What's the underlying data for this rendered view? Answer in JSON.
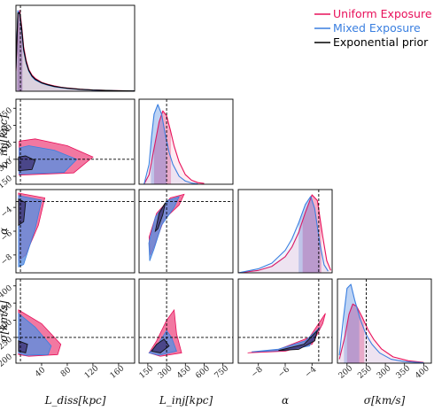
{
  "legend": {
    "entries": [
      {
        "label": "Uniform Exposure",
        "color": "#e8105a"
      },
      {
        "label": "Mixed Exposure",
        "color": "#3a7fe0"
      },
      {
        "label": "Exponential prior",
        "color": "#000000"
      }
    ],
    "placement": "top-right"
  },
  "chart_data": {
    "type": "corner",
    "parameters": [
      {
        "name": "L_diss",
        "label": "L_diss[kpc]",
        "ticks": [
          "40",
          "80",
          "120",
          "160"
        ],
        "tick_values": [
          40,
          80,
          120,
          160
        ],
        "range": [
          0,
          185
        ],
        "truth": 7
      },
      {
        "name": "L_inj",
        "label": "L_inj[kpc]",
        "ticks": [
          "150",
          "300",
          "450",
          "600",
          "750"
        ],
        "tick_values": [
          150,
          300,
          450,
          600,
          750
        ],
        "range": [
          80,
          830
        ],
        "truth": 300
      },
      {
        "name": "alpha",
        "label": "α",
        "ticks": [
          "−8",
          "−6",
          "−4"
        ],
        "tick_values": [
          -8,
          -6,
          -4
        ],
        "range": [
          -9.5,
          -2.5
        ],
        "truth": -3.5
      },
      {
        "name": "sigma",
        "label": "σ[km/s]",
        "ticks": [
          "200",
          "250",
          "300",
          "350",
          "400"
        ],
        "tick_values": [
          200,
          250,
          300,
          350,
          400
        ],
        "range": [
          175,
          420
        ],
        "truth": 250
      }
    ],
    "series": [
      {
        "name": "Uniform Exposure",
        "color": "#e8105a"
      },
      {
        "name": "Mixed Exposure",
        "color": "#3a7fe0"
      },
      {
        "name": "Exponential prior",
        "color": "#000000"
      }
    ],
    "marginals": [
      {
        "param": "L_diss",
        "curves": [
          {
            "series": "Uniform Exposure",
            "x": [
              0,
              3,
              6,
              9,
              12,
              16,
              20,
              25,
              30,
              40,
              50,
              60,
              70,
              80,
              100,
              120,
              140,
              160,
              185
            ],
            "y": [
              0.25,
              0.95,
              1.0,
              0.8,
              0.55,
              0.38,
              0.27,
              0.2,
              0.16,
              0.11,
              0.085,
              0.065,
              0.05,
              0.04,
              0.025,
              0.016,
              0.01,
              0.006,
              0.004
            ]
          },
          {
            "series": "Mixed Exposure",
            "x": [
              0,
              3,
              6,
              9,
              12,
              16,
              20,
              25,
              30,
              40,
              50,
              60,
              70,
              80,
              100,
              120,
              140,
              160,
              185
            ],
            "y": [
              0.3,
              1.0,
              0.95,
              0.75,
              0.5,
              0.35,
              0.25,
              0.18,
              0.14,
              0.1,
              0.075,
              0.055,
              0.045,
              0.035,
              0.022,
              0.014,
              0.009,
              0.005,
              0.003
            ]
          },
          {
            "series": "Exponential prior",
            "x": [
              0,
              3,
              6,
              9,
              12,
              16,
              20,
              25,
              30,
              40,
              50,
              60,
              70,
              80,
              100,
              120,
              140,
              160,
              185
            ],
            "y": [
              0.28,
              0.97,
              0.97,
              0.77,
              0.52,
              0.36,
              0.26,
              0.19,
              0.15,
              0.105,
              0.08,
              0.06,
              0.048,
              0.038,
              0.024,
              0.015,
              0.01,
              0.006,
              0.004
            ]
          }
        ],
        "intervals": [
          {
            "series": "Uniform Exposure",
            "range": [
              2,
              10
            ]
          },
          {
            "series": "Mixed Exposure",
            "range": [
              2,
              10
            ]
          }
        ]
      },
      {
        "param": "L_inj",
        "curves": [
          {
            "series": "Uniform Exposure",
            "x": [
              120,
              160,
              200,
              240,
              270,
              300,
              330,
              360,
              400,
              450,
              500,
              550,
              600
            ],
            "y": [
              0,
              0.12,
              0.45,
              0.78,
              0.92,
              0.86,
              0.68,
              0.48,
              0.28,
              0.12,
              0.05,
              0.02,
              0.01
            ]
          },
          {
            "series": "Mixed Exposure",
            "x": [
              120,
              160,
              180,
              200,
              230,
              260,
              290,
              320,
              350,
              400,
              450,
              500,
              550
            ],
            "y": [
              0,
              0.25,
              0.6,
              0.88,
              1.0,
              0.88,
              0.62,
              0.4,
              0.25,
              0.1,
              0.04,
              0.015,
              0.005
            ]
          }
        ],
        "intervals": [
          {
            "series": "Uniform Exposure",
            "range": [
              200,
              335
            ]
          },
          {
            "series": "Mixed Exposure",
            "range": [
              175,
              300
            ]
          }
        ]
      },
      {
        "param": "alpha",
        "curves": [
          {
            "series": "Uniform Exposure",
            "x": [
              -9.5,
              -8,
              -7,
              -6,
              -5.5,
              -5,
              -4.5,
              -4,
              -3.6,
              -3.2,
              -2.9,
              -2.6
            ],
            "y": [
              0,
              0.03,
              0.08,
              0.2,
              0.32,
              0.5,
              0.75,
              0.97,
              0.9,
              0.45,
              0.15,
              0.03
            ]
          },
          {
            "series": "Mixed Exposure",
            "x": [
              -9.5,
              -8,
              -7,
              -6,
              -5.5,
              -5,
              -4.5,
              -4.1,
              -3.8,
              -3.4,
              -3.1,
              -2.8
            ],
            "y": [
              0,
              0.05,
              0.12,
              0.28,
              0.42,
              0.62,
              0.85,
              0.95,
              0.8,
              0.35,
              0.1,
              0.02
            ]
          }
        ],
        "intervals": [
          {
            "series": "Uniform Exposure",
            "range": [
              -4.7,
              -3.3
            ]
          },
          {
            "series": "Mixed Exposure",
            "range": [
              -5.0,
              -3.4
            ]
          }
        ]
      },
      {
        "param": "sigma",
        "curves": [
          {
            "series": "Uniform Exposure",
            "x": [
              180,
              195,
              205,
              215,
              225,
              240,
              255,
              270,
              290,
              320,
              360,
              400
            ],
            "y": [
              0.05,
              0.35,
              0.62,
              0.75,
              0.72,
              0.58,
              0.42,
              0.3,
              0.18,
              0.08,
              0.03,
              0.01
            ]
          },
          {
            "series": "Mixed Exposure",
            "x": [
              180,
              190,
              200,
              210,
              220,
              235,
              250,
              265,
              285,
              315,
              350,
              400
            ],
            "y": [
              0.1,
              0.55,
              0.95,
              1.0,
              0.8,
              0.55,
              0.36,
              0.24,
              0.13,
              0.05,
              0.02,
              0.005
            ]
          }
        ],
        "intervals": [
          {
            "series": "Uniform Exposure",
            "range": [
              200,
              245
            ]
          },
          {
            "series": "Mixed Exposure",
            "range": [
              192,
              232
            ]
          }
        ]
      }
    ],
    "pairs": [
      {
        "x": "L_diss",
        "y": "L_inj",
        "outer": {
          "Uniform Exposure": [
            [
              5,
              160
            ],
            [
              90,
              180
            ],
            [
              120,
              320
            ],
            [
              80,
              420
            ],
            [
              30,
              480
            ],
            [
              5,
              460
            ]
          ],
          "Mixed Exposure": [
            [
              5,
              170
            ],
            [
              75,
              185
            ],
            [
              95,
              300
            ],
            [
              60,
              380
            ],
            [
              20,
              420
            ],
            [
              5,
              400
            ]
          ]
        },
        "inner": [
          [
            4,
            200
          ],
          [
            25,
            210
          ],
          [
            30,
            290
          ],
          [
            15,
            330
          ],
          [
            4,
            320
          ]
        ]
      },
      {
        "x": "L_diss",
        "y": "alpha",
        "outer": {
          "Uniform Exposure": [
            [
              4,
              -2.8
            ],
            [
              45,
              -3.2
            ],
            [
              35,
              -5.5
            ],
            [
              15,
              -8
            ],
            [
              4,
              -8.5
            ]
          ],
          "Mixed Exposure": [
            [
              4,
              -3.0
            ],
            [
              40,
              -3.4
            ],
            [
              30,
              -5.8
            ],
            [
              12,
              -8.8
            ],
            [
              4,
              -9.0
            ]
          ]
        },
        "inner": [
          [
            4,
            -3.3
          ],
          [
            15,
            -3.6
          ],
          [
            12,
            -5.2
          ],
          [
            4,
            -5.5
          ]
        ]
      },
      {
        "x": "L_diss",
        "y": "sigma",
        "outer": {
          "Uniform Exposure": [
            [
              4,
              330
            ],
            [
              40,
              290
            ],
            [
              70,
              230
            ],
            [
              65,
              200
            ],
            [
              20,
              195
            ],
            [
              4,
              200
            ]
          ],
          "Mixed Exposure": [
            [
              4,
              320
            ],
            [
              30,
              280
            ],
            [
              55,
              225
            ],
            [
              50,
              200
            ],
            [
              15,
              198
            ],
            [
              4,
              205
            ]
          ]
        },
        "inner": [
          [
            4,
            240
          ],
          [
            18,
            230
          ],
          [
            15,
            205
          ],
          [
            4,
            210
          ]
        ]
      },
      {
        "x": "L_inj",
        "y": "alpha",
        "outer": {
          "Uniform Exposure": [
            [
              170,
              -8
            ],
            [
              160,
              -6.5
            ],
            [
              220,
              -4.5
            ],
            [
              330,
              -3.2
            ],
            [
              440,
              -2.9
            ],
            [
              400,
              -3.8
            ],
            [
              280,
              -5
            ],
            [
              210,
              -7
            ]
          ],
          "Mixed Exposure": [
            [
              165,
              -8.5
            ],
            [
              158,
              -7
            ],
            [
              210,
              -4.8
            ],
            [
              310,
              -3.4
            ],
            [
              400,
              -3.1
            ],
            [
              360,
              -4
            ],
            [
              260,
              -5.5
            ],
            [
              200,
              -7.5
            ]
          ]
        },
        "inner": [
          [
            210,
            -6
          ],
          [
            240,
            -4.5
          ],
          [
            290,
            -3.6
          ],
          [
            270,
            -4.6
          ],
          [
            230,
            -5.8
          ]
        ]
      },
      {
        "x": "L_inj",
        "y": "sigma",
        "outer": {
          "Uniform Exposure": [
            [
              160,
              205
            ],
            [
              250,
              195
            ],
            [
              420,
              205
            ],
            [
              380,
              260
            ],
            [
              360,
              330
            ],
            [
              300,
              300
            ],
            [
              220,
              240
            ]
          ],
          "Mixed Exposure": [
            [
              160,
              205
            ],
            [
              240,
              198
            ],
            [
              380,
              210
            ],
            [
              340,
              250
            ],
            [
              300,
              270
            ],
            [
              230,
              230
            ]
          ]
        },
        "inner": [
          [
            180,
            210
          ],
          [
            250,
            205
          ],
          [
            320,
            225
          ],
          [
            280,
            245
          ],
          [
            220,
            230
          ]
        ]
      },
      {
        "x": "alpha",
        "y": "sigma",
        "outer": {
          "Uniform Exposure": [
            [
              -8.8,
              205
            ],
            [
              -6,
              210
            ],
            [
              -4,
              230
            ],
            [
              -3.2,
              290
            ],
            [
              -3.0,
              320
            ],
            [
              -4.2,
              250
            ],
            [
              -6.5,
              215
            ]
          ],
          "Mixed Exposure": [
            [
              -8.5,
              208
            ],
            [
              -6,
              212
            ],
            [
              -4.2,
              225
            ],
            [
              -3.4,
              280
            ],
            [
              -4.5,
              240
            ],
            [
              -6.5,
              216
            ]
          ]
        },
        "inner": [
          [
            -6.5,
            212
          ],
          [
            -5,
            215
          ],
          [
            -3.8,
            240
          ],
          [
            -3.6,
            270
          ],
          [
            -4.6,
            230
          ]
        ]
      }
    ]
  }
}
